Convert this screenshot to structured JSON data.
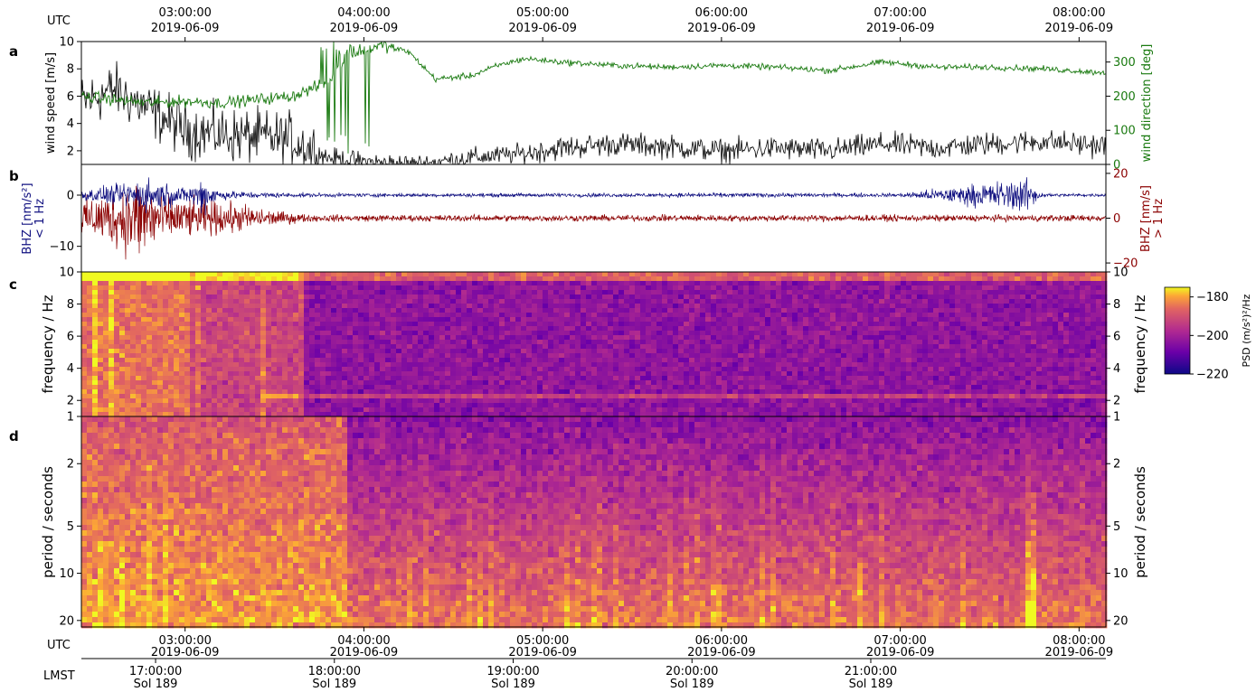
{
  "utc_label": "UTC",
  "lmst_label": "LMST",
  "utc_ticks": [
    {
      "time": "03:00:00",
      "date": "2019-06-09"
    },
    {
      "time": "04:00:00",
      "date": "2019-06-09"
    },
    {
      "time": "05:00:00",
      "date": "2019-06-09"
    },
    {
      "time": "06:00:00",
      "date": "2019-06-09"
    },
    {
      "time": "07:00:00",
      "date": "2019-06-09"
    },
    {
      "time": "08:00:00",
      "date": "2019-06-09"
    }
  ],
  "lmst_ticks": [
    {
      "time": "17:00:00",
      "sol": "Sol 189"
    },
    {
      "time": "18:00:00",
      "sol": "Sol 189"
    },
    {
      "time": "19:00:00",
      "sol": "Sol 189"
    },
    {
      "time": "20:00:00",
      "sol": "Sol 189"
    },
    {
      "time": "21:00:00",
      "sol": "Sol 189"
    }
  ],
  "panels": {
    "a": {
      "letter": "a",
      "ylabel_left": "wind speed [m/s]",
      "ylabel_right": "wind direction [deg]"
    },
    "b": {
      "letter": "b",
      "ylabel_left_1": "BHZ [nm/s²]",
      "ylabel_left_2": "< 1 Hz",
      "ylabel_right_1": "BHZ [nm/s]",
      "ylabel_right_2": "> 1 Hz"
    },
    "c": {
      "letter": "c",
      "ylabel": "frequency / Hz"
    },
    "d": {
      "letter": "d",
      "ylabel": "period / seconds"
    }
  },
  "colorbar": {
    "label": "PSD (m/s²)²/Hz",
    "ticks": [
      "−180",
      "−200",
      "−220"
    ]
  },
  "colors": {
    "wind_speed": "#000000",
    "wind_direction": "#1a7a10",
    "bhz_low": "#101080",
    "bhz_high": "#8b0000"
  },
  "chart_data": [
    {
      "type": "line",
      "panel": "a",
      "x_unit": "UTC 2019-06-09 (hours)",
      "xlim": [
        2.42,
        8.15
      ],
      "series": [
        {
          "name": "wind speed",
          "axis": "left",
          "unit": "m/s",
          "x": [
            2.42,
            2.6,
            2.8,
            3.0,
            3.2,
            3.4,
            3.6,
            3.8,
            4.0,
            4.3,
            4.6,
            4.9,
            5.1,
            5.4,
            5.7,
            6.0,
            6.3,
            6.6,
            6.9,
            7.2,
            7.5,
            7.8,
            8.1
          ],
          "values": [
            5.5,
            6.5,
            5.0,
            3.5,
            3.2,
            3.0,
            2.8,
            1.5,
            1.2,
            1.0,
            1.5,
            1.8,
            2.2,
            2.5,
            2.3,
            2.0,
            2.2,
            2.0,
            2.5,
            2.2,
            2.5,
            2.7,
            2.4
          ]
        },
        {
          "name": "wind direction",
          "axis": "right",
          "unit": "deg",
          "x": [
            2.42,
            2.6,
            2.8,
            3.0,
            3.2,
            3.4,
            3.6,
            3.8,
            3.9,
            4.1,
            4.25,
            4.4,
            4.6,
            4.75,
            4.9,
            5.1,
            5.4,
            5.7,
            6.0,
            6.3,
            6.6,
            6.9,
            7.2,
            7.5,
            7.8,
            8.1
          ],
          "values": [
            200,
            190,
            180,
            185,
            180,
            190,
            200,
            240,
            320,
            350,
            330,
            250,
            260,
            290,
            310,
            300,
            290,
            285,
            290,
            285,
            275,
            300,
            285,
            285,
            280,
            270
          ]
        }
      ],
      "ylim_left": [
        1,
        10
      ],
      "ylim_right": [
        0,
        360
      ],
      "yticks_left": [
        2,
        4,
        6,
        8,
        10
      ],
      "yticks_right": [
        0,
        100,
        200,
        300
      ]
    },
    {
      "type": "line",
      "panel": "b",
      "x_unit": "UTC 2019-06-09 (hours)",
      "xlim": [
        2.42,
        8.15
      ],
      "series": [
        {
          "name": "BHZ < 1 Hz",
          "axis": "left",
          "unit": "nm/s²",
          "baseline": 0,
          "x": [
            2.42,
            2.6,
            2.8,
            3.0,
            3.1,
            3.2,
            3.4,
            3.6,
            4.0,
            5.0,
            6.0,
            7.0,
            7.7,
            7.8,
            8.1
          ],
          "amplitude": [
            1.5,
            2.5,
            4.5,
            1.8,
            5.0,
            1.2,
            0.8,
            0.6,
            0.5,
            0.5,
            0.6,
            0.5,
            4.5,
            0.5,
            0.4
          ]
        },
        {
          "name": "BHZ > 1 Hz",
          "axis": "right",
          "unit": "nm/s",
          "baseline": 0,
          "x": [
            2.42,
            2.6,
            2.75,
            2.9,
            3.1,
            3.3,
            3.5,
            3.7,
            4.0,
            5.0,
            6.0,
            7.0,
            8.1
          ],
          "amplitude": [
            10,
            15,
            25,
            12,
            10,
            8,
            4,
            2,
            1.8,
            1.8,
            1.8,
            1.8,
            1.8
          ]
        }
      ],
      "ylim_left": [
        -15,
        6
      ],
      "ylim_right": [
        -24,
        24
      ],
      "yticks_left": [
        -10,
        0
      ],
      "yticks_right": [
        -20,
        0,
        20
      ]
    },
    {
      "type": "heatmap",
      "panel": "c",
      "x_unit": "UTC 2019-06-09 (hours)",
      "xlim": [
        2.42,
        8.15
      ],
      "ylim": [
        1,
        10
      ],
      "yticks": [
        2,
        4,
        6,
        8,
        10
      ],
      "zlim": [
        -220,
        -175
      ],
      "noisy_window_utc": [
        2.42,
        3.65
      ],
      "band_hz": 2.4
    },
    {
      "type": "heatmap",
      "panel": "d",
      "x_unit": "UTC 2019-06-09 (hours)",
      "xlim": [
        2.42,
        8.15
      ],
      "ylim": [
        1,
        22
      ],
      "yscale": "log",
      "yticks": [
        1,
        2,
        5,
        10,
        20
      ],
      "zlim": [
        -220,
        -175
      ],
      "noisy_window_utc": [
        2.42,
        3.9
      ],
      "event_utc": 7.72
    }
  ]
}
